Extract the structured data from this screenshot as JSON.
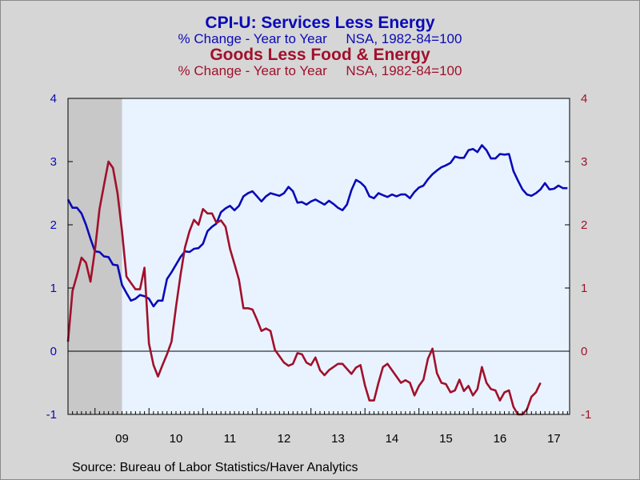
{
  "chart_data": {
    "type": "line",
    "titles": [
      {
        "text": "CPI-U: Services Less Energy",
        "color": "#0a0ab8"
      },
      {
        "text": "% Change - Year to Year     NSA, 1982-84=100",
        "color": "#0a0ab8"
      },
      {
        "text": "Goods Less Food & Energy",
        "color": "#a1102b"
      },
      {
        "text": "% Change - Year to Year     NSA, 1982-84=100",
        "color": "#a1102b"
      }
    ],
    "source": "Source:  Bureau of Labor Statistics/Haver Analytics",
    "xlim": [
      2008.5,
      2017.79
    ],
    "ylim": [
      -1,
      4
    ],
    "y_ticks": [
      4,
      3,
      2,
      1,
      0,
      -1
    ],
    "y_tick_labels_left": [
      "4",
      "3",
      "2",
      "1",
      "0",
      "-1"
    ],
    "y_tick_labels_right": [
      "4",
      "3",
      "2",
      "1",
      "0",
      "-1"
    ],
    "x_tick_labels": [
      "09",
      "10",
      "11",
      "12",
      "13",
      "14",
      "15",
      "16",
      "17"
    ],
    "recession_shading": [
      2008.5,
      2009.5
    ],
    "grid": false,
    "zero_line": true,
    "colors": {
      "plot_bg": "#e9f3ff",
      "recession": "#c8c8c8",
      "left_axis": "#0a0ab8",
      "right_axis": "#a1102b"
    },
    "series": [
      {
        "name": "CPI-U: Services Less Energy",
        "color": "#0a0ab8",
        "start": 2008.5,
        "step": 0.0833333,
        "values": [
          2.4,
          2.27,
          2.27,
          2.18,
          2.0,
          1.78,
          1.58,
          1.57,
          1.5,
          1.49,
          1.37,
          1.36,
          1.05,
          0.92,
          0.8,
          0.83,
          0.89,
          0.87,
          0.83,
          0.71,
          0.8,
          0.8,
          1.14,
          1.25,
          1.37,
          1.49,
          1.58,
          1.57,
          1.62,
          1.63,
          1.7,
          1.9,
          1.97,
          2.02,
          2.2,
          2.26,
          2.3,
          2.23,
          2.3,
          2.45,
          2.5,
          2.53,
          2.45,
          2.37,
          2.45,
          2.5,
          2.48,
          2.46,
          2.5,
          2.6,
          2.53,
          2.35,
          2.36,
          2.32,
          2.37,
          2.4,
          2.36,
          2.32,
          2.38,
          2.33,
          2.27,
          2.23,
          2.32,
          2.55,
          2.71,
          2.67,
          2.6,
          2.45,
          2.42,
          2.5,
          2.47,
          2.44,
          2.48,
          2.45,
          2.48,
          2.48,
          2.42,
          2.52,
          2.59,
          2.62,
          2.72,
          2.8,
          2.86,
          2.91,
          2.94,
          2.98,
          3.08,
          3.06,
          3.06,
          3.18,
          3.2,
          3.15,
          3.26,
          3.18,
          3.05,
          3.05,
          3.12,
          3.11,
          3.12,
          2.85,
          2.7,
          2.56,
          2.48,
          2.46,
          2.5,
          2.56,
          2.66,
          2.56,
          2.57,
          2.62,
          2.58,
          2.58
        ]
      },
      {
        "name": "Goods Less Food & Energy",
        "color": "#a1102b",
        "start": 2008.5,
        "step": 0.0833333,
        "values": [
          0.15,
          0.95,
          1.2,
          1.48,
          1.4,
          1.1,
          1.6,
          2.25,
          2.63,
          3.0,
          2.9,
          2.5,
          1.9,
          1.18,
          1.08,
          0.98,
          0.98,
          1.32,
          0.12,
          -0.22,
          -0.4,
          -0.22,
          -0.05,
          0.15,
          0.7,
          1.2,
          1.64,
          1.9,
          2.08,
          2.0,
          2.25,
          2.18,
          2.18,
          2.03,
          2.07,
          1.97,
          1.62,
          1.38,
          1.13,
          0.68,
          0.68,
          0.66,
          0.5,
          0.32,
          0.36,
          0.32,
          0.02,
          -0.08,
          -0.18,
          -0.23,
          -0.2,
          -0.03,
          -0.05,
          -0.18,
          -0.22,
          -0.1,
          -0.3,
          -0.38,
          -0.3,
          -0.25,
          -0.2,
          -0.2,
          -0.28,
          -0.36,
          -0.26,
          -0.22,
          -0.54,
          -0.78,
          -0.78,
          -0.5,
          -0.25,
          -0.2,
          -0.3,
          -0.4,
          -0.5,
          -0.46,
          -0.5,
          -0.7,
          -0.55,
          -0.45,
          -0.12,
          0.04,
          -0.35,
          -0.5,
          -0.52,
          -0.65,
          -0.62,
          -0.45,
          -0.63,
          -0.55,
          -0.7,
          -0.6,
          -0.25,
          -0.5,
          -0.6,
          -0.62,
          -0.78,
          -0.65,
          -0.62,
          -0.88,
          -1.0,
          -1.0,
          -0.92,
          -0.72,
          -0.65,
          -0.5
        ]
      }
    ]
  }
}
